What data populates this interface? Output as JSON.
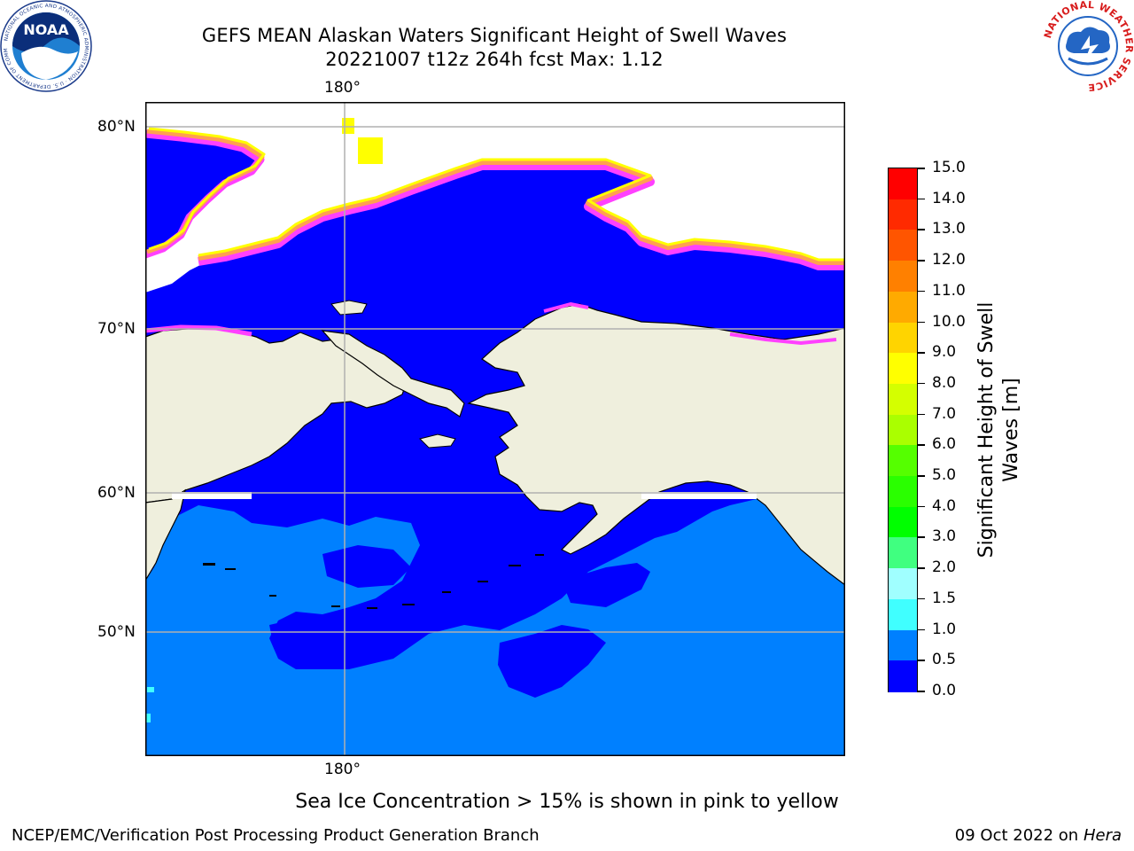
{
  "header": {
    "title_line1": "GEFS MEAN Alaskan Waters Significant Height of Swell Waves",
    "title_line2": "20221007 t12z 264h fcst   Max: 1.12"
  },
  "logos": {
    "left": {
      "name": "noaa-logo",
      "text": "NOAA",
      "ring_text": "NATIONAL OCEANIC AND ATMOSPHERIC ADMINISTRATION · U.S. DEPARTMENT OF COMMERCE"
    },
    "right": {
      "name": "nws-logo",
      "ring_text": "NATIONAL WEATHER SERVICE"
    }
  },
  "map": {
    "lon_label_top": "180°",
    "lon_label_bottom": "180°",
    "lat_labels": [
      "80°N",
      "70°N",
      "60°N",
      "50°N"
    ],
    "colors": {
      "land": "#efefdd",
      "ocean_low": "#0000ff",
      "ocean_mid": "#0080ff",
      "ice_pink": "#ff40ff",
      "ice_orange": "#ffa050",
      "ice_yellow": "#ffff00",
      "gridline": "#b0b0b0"
    }
  },
  "colorbar": {
    "title_line1": "Significant Height of Swell",
    "title_line2": "Waves [m]",
    "labels": [
      "15.0",
      "14.0",
      "13.0",
      "12.0",
      "11.0",
      "10.0",
      "9.0",
      "8.0",
      "7.0",
      "6.0",
      "5.0",
      "4.0",
      "3.0",
      "2.0",
      "1.5",
      "1.0",
      "0.5",
      "0.0"
    ],
    "colors": [
      "#ff0000",
      "#ff2a00",
      "#ff5500",
      "#ff8000",
      "#ffaa00",
      "#ffd400",
      "#ffff00",
      "#d4ff00",
      "#aaff00",
      "#55ff00",
      "#2aff00",
      "#00ff00",
      "#40ff80",
      "#a0ffff",
      "#40ffff",
      "#00ffff",
      "#0080ff",
      "#0000ff"
    ]
  },
  "footer": {
    "notice": "Sea Ice Concentration > 15% is shown in pink to yellow",
    "left": "NCEP/EMC/Verification Post Processing Product Generation Branch",
    "date": "09 Oct 2022 on ",
    "host": "Hera"
  }
}
